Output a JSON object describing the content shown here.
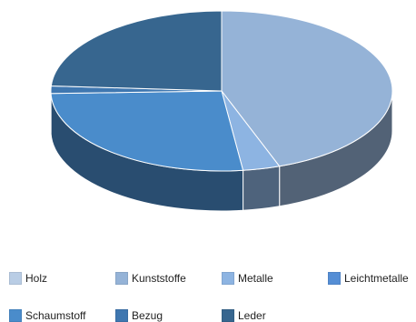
{
  "chart_data": {
    "type": "pie",
    "style": "3d",
    "title": "",
    "categories": [
      "Holz",
      "Kunststoffe",
      "Metalle",
      "Leichtmetalle",
      "Schaumstoff",
      "Bezug",
      "Leder"
    ],
    "values": [
      0,
      44.5,
      3.5,
      0,
      26.5,
      1.5,
      24
    ],
    "unit": "%",
    "legend_position": "bottom",
    "colors": [
      "#b9cde5",
      "#95b3d7",
      "#8db4e2",
      "#558ed5",
      "#4a8ccb",
      "#3f77b0",
      "#37668f"
    ]
  },
  "legend": {
    "items": [
      {
        "label": "Holz",
        "color": "#b9cde5"
      },
      {
        "label": "Kunststoffe",
        "color": "#95b3d7"
      },
      {
        "label": "Metalle",
        "color": "#8db4e2"
      },
      {
        "label": "Leichtmetalle",
        "color": "#558ed5"
      },
      {
        "label": "Schaumstoff",
        "color": "#4a8ccb"
      },
      {
        "label": "Bezug",
        "color": "#3f77b0"
      },
      {
        "label": "Leder",
        "color": "#37668f"
      }
    ]
  }
}
